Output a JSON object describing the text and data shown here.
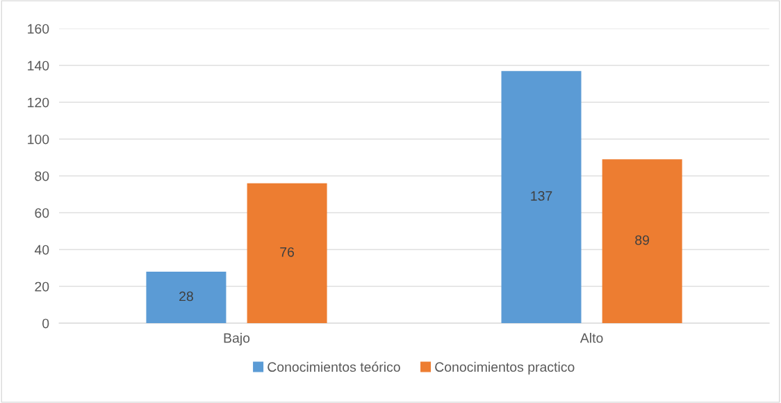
{
  "chart_data": {
    "type": "bar",
    "categories": [
      "Bajo",
      "Alto"
    ],
    "series": [
      {
        "name": "Conocimientos teórico",
        "color": "#5b9bd5",
        "values": [
          28,
          137
        ]
      },
      {
        "name": "Conocimientos practico",
        "color": "#ed7d31",
        "values": [
          76,
          89
        ]
      }
    ],
    "ylim": [
      0,
      160
    ],
    "yticks": [
      0,
      20,
      40,
      60,
      80,
      100,
      120,
      140,
      160
    ],
    "grid": "y",
    "legend": "bottom",
    "data_labels": true
  }
}
